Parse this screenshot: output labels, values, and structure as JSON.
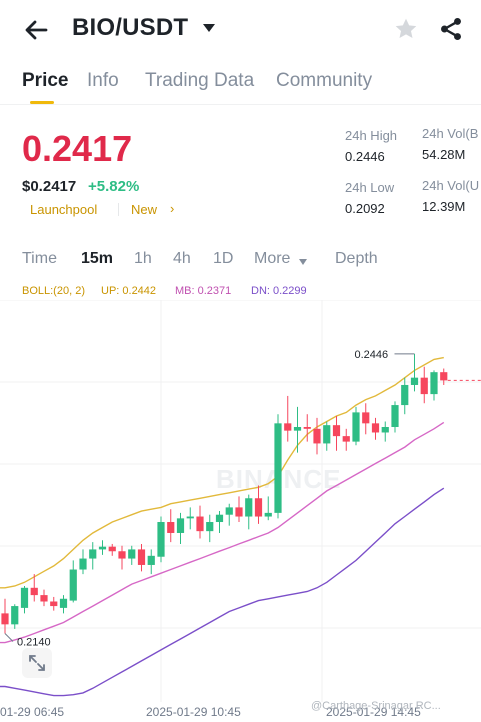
{
  "header": {
    "pair": "BIO/USDT"
  },
  "tabs": [
    "Price",
    "Info",
    "Trading Data",
    "Community"
  ],
  "price": {
    "last": "0.2417",
    "usd": "$0.2417",
    "change": "+5.82%",
    "tags": [
      "Launchpool",
      "New"
    ]
  },
  "stats": {
    "high_label": "24h High",
    "high": "0.2446",
    "low_label": "24h Low",
    "low": "0.2092",
    "vol_base_label": "24h Vol(B",
    "vol_base": "54.28M",
    "vol_quote_label": "24h Vol(U",
    "vol_quote": "12.39M"
  },
  "timeframes": [
    "Time",
    "15m",
    "1h",
    "4h",
    "1D",
    "More",
    "Depth"
  ],
  "indicator": {
    "boll": "BOLL:(20, 2)",
    "up": "UP: 0.2442",
    "mb": "MB: 0.2371",
    "dn": "DN: 0.2299"
  },
  "chart_data": {
    "type": "candlestick",
    "price_range": [
      0.2065,
      0.2505
    ],
    "high_marker": "0.2446",
    "low_marker": "0.2140",
    "x_labels": [
      "01-29 06:45",
      "2025-01-29 10:45",
      "2025-01-29 14:45"
    ],
    "watermark": "BINANCE",
    "candles": [
      {
        "o": 0.2162,
        "h": 0.2178,
        "l": 0.214,
        "c": 0.215
      },
      {
        "o": 0.215,
        "h": 0.2172,
        "l": 0.2145,
        "c": 0.217
      },
      {
        "o": 0.2168,
        "h": 0.2192,
        "l": 0.2162,
        "c": 0.219
      },
      {
        "o": 0.219,
        "h": 0.2205,
        "l": 0.2175,
        "c": 0.2182
      },
      {
        "o": 0.2182,
        "h": 0.2188,
        "l": 0.217,
        "c": 0.2175
      },
      {
        "o": 0.2175,
        "h": 0.218,
        "l": 0.2165,
        "c": 0.217
      },
      {
        "o": 0.2168,
        "h": 0.2182,
        "l": 0.2162,
        "c": 0.2178
      },
      {
        "o": 0.2176,
        "h": 0.222,
        "l": 0.2174,
        "c": 0.221
      },
      {
        "o": 0.221,
        "h": 0.2232,
        "l": 0.2205,
        "c": 0.2222
      },
      {
        "o": 0.2222,
        "h": 0.224,
        "l": 0.221,
        "c": 0.2232
      },
      {
        "o": 0.2232,
        "h": 0.2242,
        "l": 0.2226,
        "c": 0.2235
      },
      {
        "o": 0.2235,
        "h": 0.2238,
        "l": 0.2225,
        "c": 0.223
      },
      {
        "o": 0.223,
        "h": 0.2236,
        "l": 0.221,
        "c": 0.2222
      },
      {
        "o": 0.2222,
        "h": 0.2236,
        "l": 0.2215,
        "c": 0.2232
      },
      {
        "o": 0.2232,
        "h": 0.2238,
        "l": 0.2208,
        "c": 0.2215
      },
      {
        "o": 0.2215,
        "h": 0.2232,
        "l": 0.2205,
        "c": 0.2225
      },
      {
        "o": 0.2224,
        "h": 0.2268,
        "l": 0.2218,
        "c": 0.2262
      },
      {
        "o": 0.2262,
        "h": 0.2276,
        "l": 0.224,
        "c": 0.225
      },
      {
        "o": 0.225,
        "h": 0.2272,
        "l": 0.2238,
        "c": 0.2266
      },
      {
        "o": 0.2266,
        "h": 0.2278,
        "l": 0.2254,
        "c": 0.2268
      },
      {
        "o": 0.2268,
        "h": 0.228,
        "l": 0.2244,
        "c": 0.2252
      },
      {
        "o": 0.2252,
        "h": 0.227,
        "l": 0.224,
        "c": 0.2262
      },
      {
        "o": 0.2262,
        "h": 0.2274,
        "l": 0.225,
        "c": 0.227
      },
      {
        "o": 0.227,
        "h": 0.2282,
        "l": 0.2258,
        "c": 0.2278
      },
      {
        "o": 0.2278,
        "h": 0.229,
        "l": 0.2262,
        "c": 0.2268
      },
      {
        "o": 0.2268,
        "h": 0.2292,
        "l": 0.2254,
        "c": 0.2288
      },
      {
        "o": 0.2288,
        "h": 0.2302,
        "l": 0.226,
        "c": 0.2268
      },
      {
        "o": 0.2268,
        "h": 0.229,
        "l": 0.2264,
        "c": 0.2272
      },
      {
        "o": 0.2272,
        "h": 0.238,
        "l": 0.2266,
        "c": 0.237
      },
      {
        "o": 0.237,
        "h": 0.24,
        "l": 0.235,
        "c": 0.2362
      },
      {
        "o": 0.2362,
        "h": 0.2388,
        "l": 0.2338,
        "c": 0.2366
      },
      {
        "o": 0.2366,
        "h": 0.238,
        "l": 0.235,
        "c": 0.2364
      },
      {
        "o": 0.2364,
        "h": 0.2376,
        "l": 0.2336,
        "c": 0.2348
      },
      {
        "o": 0.2348,
        "h": 0.2372,
        "l": 0.234,
        "c": 0.2368
      },
      {
        "o": 0.2368,
        "h": 0.2378,
        "l": 0.234,
        "c": 0.2356
      },
      {
        "o": 0.2356,
        "h": 0.2364,
        "l": 0.234,
        "c": 0.235
      },
      {
        "o": 0.235,
        "h": 0.2388,
        "l": 0.2346,
        "c": 0.2382
      },
      {
        "o": 0.2382,
        "h": 0.2392,
        "l": 0.2358,
        "c": 0.237
      },
      {
        "o": 0.237,
        "h": 0.2376,
        "l": 0.2352,
        "c": 0.236
      },
      {
        "o": 0.236,
        "h": 0.2372,
        "l": 0.235,
        "c": 0.2366
      },
      {
        "o": 0.2366,
        "h": 0.2394,
        "l": 0.236,
        "c": 0.239
      },
      {
        "o": 0.239,
        "h": 0.242,
        "l": 0.238,
        "c": 0.2412
      },
      {
        "o": 0.2412,
        "h": 0.2446,
        "l": 0.2405,
        "c": 0.242
      },
      {
        "o": 0.242,
        "h": 0.2432,
        "l": 0.2392,
        "c": 0.2402
      },
      {
        "o": 0.2402,
        "h": 0.2428,
        "l": 0.2395,
        "c": 0.2426
      },
      {
        "o": 0.2426,
        "h": 0.243,
        "l": 0.2412,
        "c": 0.2417
      }
    ],
    "boll_up": [
      0.219,
      0.2192,
      0.2196,
      0.2202,
      0.2208,
      0.2214,
      0.2222,
      0.2232,
      0.2242,
      0.225,
      0.2256,
      0.2262,
      0.2266,
      0.227,
      0.2274,
      0.2276,
      0.2278,
      0.2282,
      0.2284,
      0.2286,
      0.2288,
      0.229,
      0.2292,
      0.2294,
      0.2296,
      0.2298,
      0.23,
      0.2304,
      0.2312,
      0.233,
      0.2346,
      0.2358,
      0.2366,
      0.2372,
      0.2378,
      0.2382,
      0.239,
      0.2396,
      0.24,
      0.2406,
      0.2412,
      0.242,
      0.2428,
      0.2434,
      0.244,
      0.2442
    ],
    "boll_mb": [
      0.213,
      0.2133,
      0.2136,
      0.214,
      0.2144,
      0.2148,
      0.2152,
      0.2158,
      0.2164,
      0.217,
      0.2176,
      0.2182,
      0.2188,
      0.2194,
      0.2198,
      0.2202,
      0.2206,
      0.221,
      0.2214,
      0.2218,
      0.2222,
      0.2226,
      0.223,
      0.2234,
      0.2238,
      0.2242,
      0.2246,
      0.225,
      0.2256,
      0.2264,
      0.2272,
      0.228,
      0.2288,
      0.2296,
      0.2302,
      0.2308,
      0.2314,
      0.232,
      0.2326,
      0.2332,
      0.2338,
      0.2344,
      0.2352,
      0.2358,
      0.2364,
      0.2371
    ],
    "boll_dn": [
      0.2082,
      0.208,
      0.2078,
      0.2076,
      0.2074,
      0.2072,
      0.2072,
      0.2073,
      0.2075,
      0.208,
      0.2086,
      0.2092,
      0.2098,
      0.2104,
      0.211,
      0.2116,
      0.2122,
      0.2128,
      0.2134,
      0.214,
      0.2146,
      0.2152,
      0.2158,
      0.2164,
      0.2168,
      0.2172,
      0.2176,
      0.2178,
      0.218,
      0.2182,
      0.2184,
      0.2186,
      0.219,
      0.2196,
      0.2204,
      0.2212,
      0.222,
      0.223,
      0.224,
      0.225,
      0.226,
      0.2268,
      0.2276,
      0.2284,
      0.2292,
      0.2299
    ],
    "colors": {
      "up": "#2ebd85",
      "down": "#f6465d",
      "boll_up": "#e2b93b",
      "boll_mb": "#d668c6",
      "boll_dn": "#7b4fc9",
      "grid": "#f0f1f2"
    }
  },
  "watermark": "@Carthage-Srinagar RC..."
}
